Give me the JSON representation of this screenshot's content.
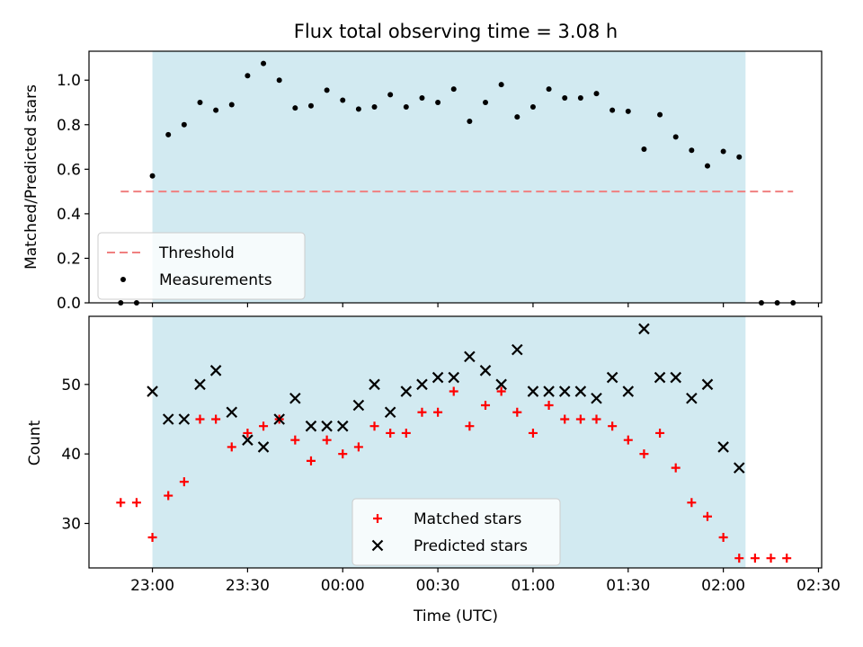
{
  "chart_data": [
    {
      "type": "scatter",
      "title": "Flux total observing time = 3.08 h",
      "xlabel": "",
      "ylabel": "Matched/Predicted stars",
      "ylim": [
        0,
        1.13
      ],
      "yticks": [
        0.0,
        0.2,
        0.4,
        0.6,
        0.8,
        1.0
      ],
      "ytick_labels": [
        "0.0",
        "0.2",
        "0.4",
        "0.6",
        "0.8",
        "1.0"
      ],
      "shaded_span": {
        "x": [
          "23:00",
          "02:07"
        ],
        "color": "#add8e6"
      },
      "threshold": {
        "name": "Threshold",
        "value": 0.5,
        "x": [
          "22:50",
          "02:22"
        ],
        "color": "#f08080",
        "style": "dashed"
      },
      "legend": {
        "position": "lower-left",
        "entries": [
          "Threshold",
          "Measurements"
        ]
      },
      "series": [
        {
          "name": "Measurements",
          "marker": "dot",
          "color": "#000000",
          "points": [
            [
              "22:50",
              0.0
            ],
            [
              "22:55",
              0.0
            ],
            [
              "23:00",
              0.57
            ],
            [
              "23:05",
              0.755
            ],
            [
              "23:10",
              0.8
            ],
            [
              "23:15",
              0.9
            ],
            [
              "23:20",
              0.865
            ],
            [
              "23:25",
              0.89
            ],
            [
              "23:30",
              1.02
            ],
            [
              "23:35",
              1.075
            ],
            [
              "23:40",
              1.0
            ],
            [
              "23:45",
              0.875
            ],
            [
              "23:50",
              0.885
            ],
            [
              "23:55",
              0.955
            ],
            [
              "00:00",
              0.91
            ],
            [
              "00:05",
              0.87
            ],
            [
              "00:10",
              0.88
            ],
            [
              "00:15",
              0.935
            ],
            [
              "00:20",
              0.88
            ],
            [
              "00:25",
              0.92
            ],
            [
              "00:30",
              0.9
            ],
            [
              "00:35",
              0.96
            ],
            [
              "00:40",
              0.815
            ],
            [
              "00:45",
              0.9
            ],
            [
              "00:50",
              0.98
            ],
            [
              "00:55",
              0.835
            ],
            [
              "01:00",
              0.88
            ],
            [
              "01:05",
              0.96
            ],
            [
              "01:10",
              0.92
            ],
            [
              "01:15",
              0.92
            ],
            [
              "01:20",
              0.94
            ],
            [
              "01:25",
              0.865
            ],
            [
              "01:30",
              0.86
            ],
            [
              "01:35",
              0.69
            ],
            [
              "01:40",
              0.845
            ],
            [
              "01:45",
              0.745
            ],
            [
              "01:50",
              0.685
            ],
            [
              "01:55",
              0.615
            ],
            [
              "02:00",
              0.68
            ],
            [
              "02:05",
              0.655
            ],
            [
              "02:12",
              0.0
            ],
            [
              "02:17",
              0.0
            ],
            [
              "02:22",
              0.0
            ]
          ]
        }
      ]
    },
    {
      "type": "scatter",
      "title": "",
      "xlabel": "Time (UTC)",
      "ylabel": "Count",
      "ylim": [
        23.6,
        59.8
      ],
      "yticks": [
        30,
        40,
        50
      ],
      "ytick_labels": [
        "30",
        "40",
        "50"
      ],
      "xlim": [
        "22:40",
        "02:31"
      ],
      "xticks": [
        "23:00",
        "23:30",
        "00:00",
        "00:30",
        "01:00",
        "01:30",
        "02:00",
        "02:30"
      ],
      "shaded_span": {
        "x": [
          "23:00",
          "02:07"
        ],
        "color": "#add8e6"
      },
      "legend": {
        "position": "lower-center",
        "entries": [
          "Matched stars",
          "Predicted stars"
        ]
      },
      "series": [
        {
          "name": "Matched stars",
          "marker": "plus",
          "color": "#ff0000",
          "points": [
            [
              "22:50",
              33
            ],
            [
              "22:55",
              33
            ],
            [
              "23:00",
              28
            ],
            [
              "23:05",
              34
            ],
            [
              "23:10",
              36
            ],
            [
              "23:15",
              45
            ],
            [
              "23:20",
              45
            ],
            [
              "23:25",
              41
            ],
            [
              "23:30",
              43
            ],
            [
              "23:35",
              44
            ],
            [
              "23:40",
              45
            ],
            [
              "23:45",
              42
            ],
            [
              "23:50",
              39
            ],
            [
              "23:55",
              42
            ],
            [
              "00:00",
              40
            ],
            [
              "00:05",
              41
            ],
            [
              "00:10",
              44
            ],
            [
              "00:15",
              43
            ],
            [
              "00:20",
              43
            ],
            [
              "00:25",
              46
            ],
            [
              "00:30",
              46
            ],
            [
              "00:35",
              49
            ],
            [
              "00:40",
              44
            ],
            [
              "00:45",
              47
            ],
            [
              "00:50",
              49
            ],
            [
              "00:55",
              46
            ],
            [
              "01:00",
              43
            ],
            [
              "01:05",
              47
            ],
            [
              "01:10",
              45
            ],
            [
              "01:15",
              45
            ],
            [
              "01:20",
              45
            ],
            [
              "01:25",
              44
            ],
            [
              "01:30",
              42
            ],
            [
              "01:35",
              40
            ],
            [
              "01:40",
              43
            ],
            [
              "01:45",
              38
            ],
            [
              "01:50",
              33
            ],
            [
              "01:55",
              31
            ],
            [
              "02:00",
              28
            ],
            [
              "02:05",
              25
            ],
            [
              "02:10",
              25
            ],
            [
              "02:15",
              25
            ],
            [
              "02:20",
              25
            ]
          ]
        },
        {
          "name": "Predicted stars",
          "marker": "x",
          "color": "#000000",
          "points": [
            [
              "23:00",
              49
            ],
            [
              "23:05",
              45
            ],
            [
              "23:10",
              45
            ],
            [
              "23:15",
              50
            ],
            [
              "23:20",
              52
            ],
            [
              "23:25",
              46
            ],
            [
              "23:30",
              42
            ],
            [
              "23:35",
              41
            ],
            [
              "23:40",
              45
            ],
            [
              "23:45",
              48
            ],
            [
              "23:50",
              44
            ],
            [
              "23:55",
              44
            ],
            [
              "00:00",
              44
            ],
            [
              "00:05",
              47
            ],
            [
              "00:10",
              50
            ],
            [
              "00:15",
              46
            ],
            [
              "00:20",
              49
            ],
            [
              "00:25",
              50
            ],
            [
              "00:30",
              51
            ],
            [
              "00:35",
              51
            ],
            [
              "00:40",
              54
            ],
            [
              "00:45",
              52
            ],
            [
              "00:50",
              50
            ],
            [
              "00:55",
              55
            ],
            [
              "01:00",
              49
            ],
            [
              "01:05",
              49
            ],
            [
              "01:10",
              49
            ],
            [
              "01:15",
              49
            ],
            [
              "01:20",
              48
            ],
            [
              "01:25",
              51
            ],
            [
              "01:30",
              49
            ],
            [
              "01:35",
              58
            ],
            [
              "01:40",
              51
            ],
            [
              "01:45",
              51
            ],
            [
              "01:50",
              48
            ],
            [
              "01:55",
              50
            ],
            [
              "02:00",
              41
            ],
            [
              "02:05",
              38
            ]
          ]
        }
      ]
    }
  ]
}
